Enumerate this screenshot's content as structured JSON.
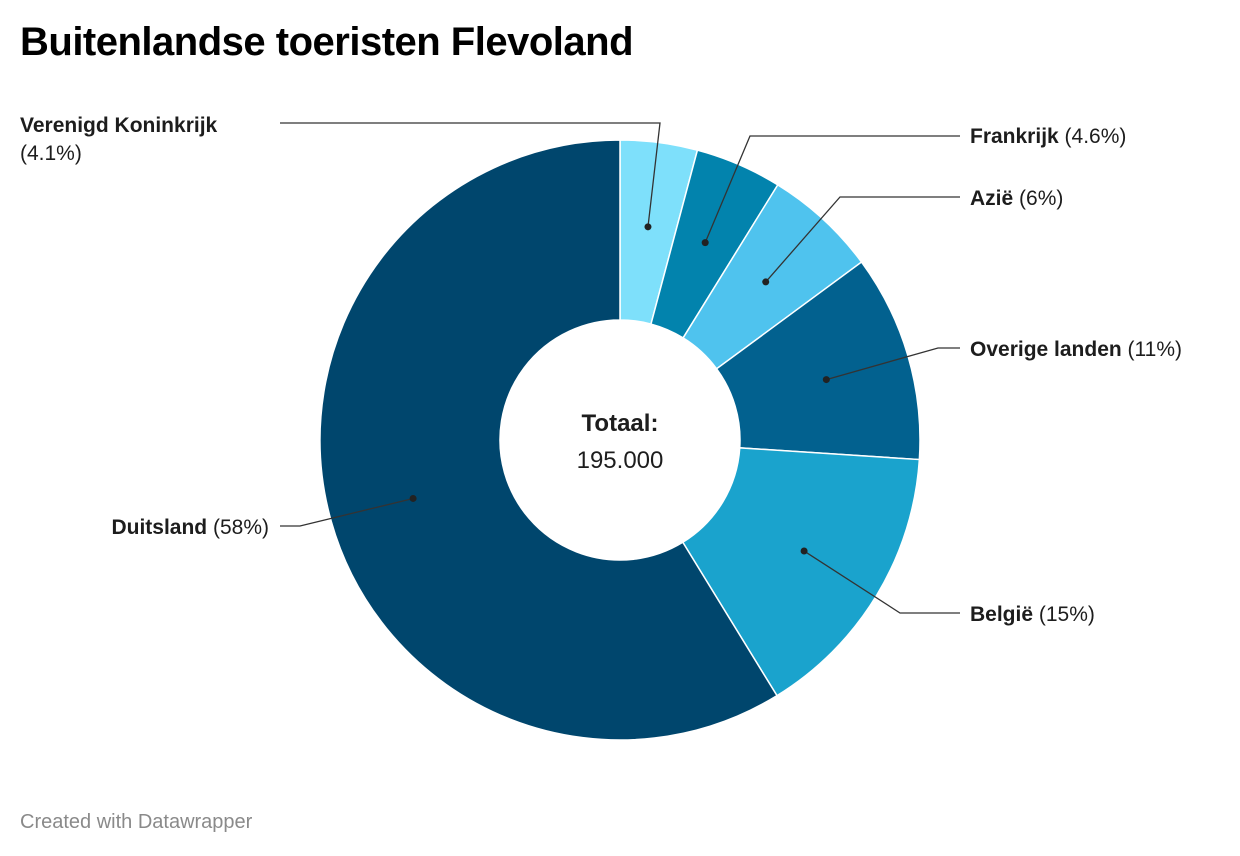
{
  "title": "Buitenlandse toeristen Flevoland",
  "footer": "Created with Datawrapper",
  "chart_data": {
    "type": "pie",
    "donut": true,
    "center_label": "Totaal:",
    "center_value": "195.000",
    "slices": [
      {
        "name": "Verenigd Koninkrijk",
        "value": 4.1,
        "pct_label": "(4.1%)",
        "color": "#7ee0fb"
      },
      {
        "name": "Frankrijk",
        "value": 4.6,
        "pct_label": "(4.6%)",
        "color": "#0283ad"
      },
      {
        "name": "Azië",
        "value": 6,
        "pct_label": "(6%)",
        "color": "#4fc3ee"
      },
      {
        "name": "Overige landen",
        "value": 11,
        "pct_label": "(11%)",
        "color": "#02618f"
      },
      {
        "name": "België",
        "value": 15,
        "pct_label": "(15%)",
        "color": "#1aa3cd"
      },
      {
        "name": "Duitsland",
        "value": 58,
        "pct_label": "(58%)",
        "color": "#00466d"
      }
    ]
  }
}
